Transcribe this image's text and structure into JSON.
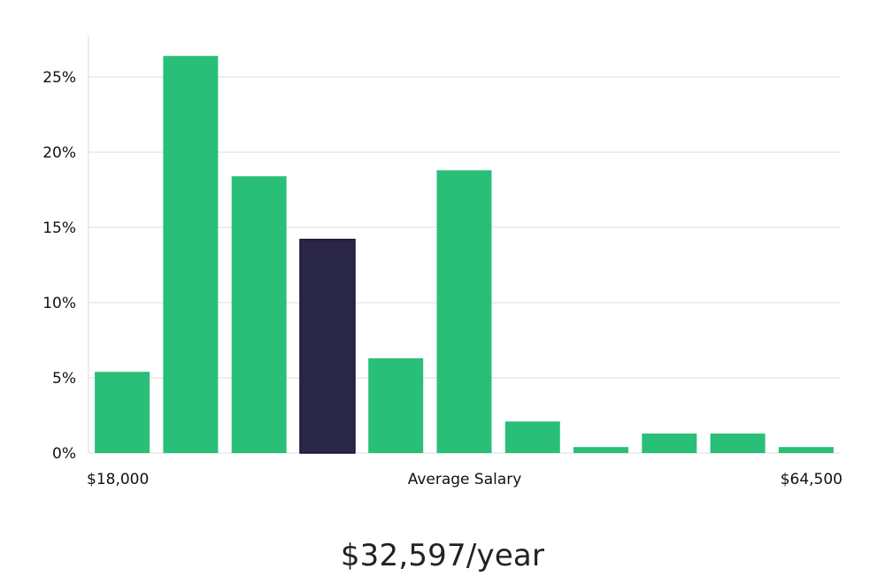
{
  "chart_data": {
    "type": "bar",
    "xlabel": "Average Salary",
    "x_range_labels": [
      "$18,000",
      "$64,500"
    ],
    "y_ticks": [
      "0%",
      "5%",
      "10%",
      "15%",
      "20%",
      "25%"
    ],
    "ylim": [
      0,
      28
    ],
    "grid": true,
    "values": [
      5.4,
      26.4,
      18.4,
      14.2,
      6.3,
      18.8,
      2.1,
      0.4,
      1.3,
      1.3,
      0.4
    ],
    "highlight_index": 3,
    "colors": {
      "default": "#2abf78",
      "highlight": "#2a2647",
      "highlight_border": "#15132e"
    }
  },
  "headline": "$32,597/year"
}
